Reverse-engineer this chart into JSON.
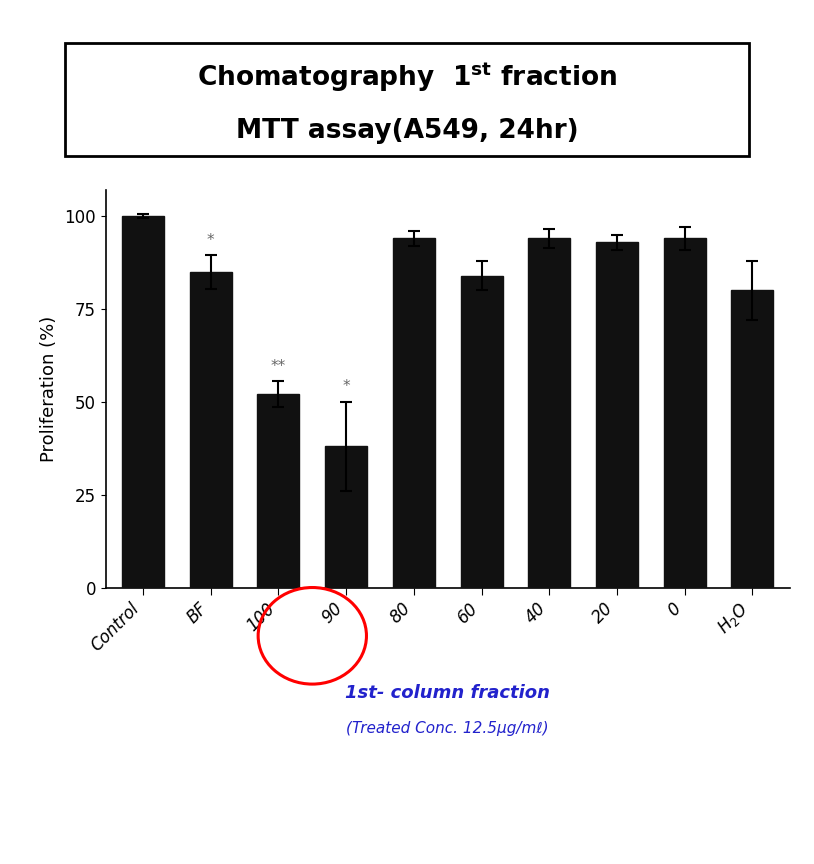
{
  "categories": [
    "Control",
    "BF",
    "100",
    "90",
    "80",
    "60",
    "40",
    "20",
    "0",
    "H₂O"
  ],
  "values": [
    100,
    85,
    52,
    38,
    94,
    84,
    94,
    93,
    94,
    80
  ],
  "errors": [
    0.5,
    4.5,
    3.5,
    12,
    2,
    4,
    2.5,
    2,
    3,
    8
  ],
  "bar_color": "#111111",
  "background_color": "#ffffff",
  "title_line1": "Chomatography  1$\\mathbf{^{st}}$ fraction",
  "title_line2": "MTT assay(A549, 24hr)",
  "ylabel": "Proliferation (%)",
  "xlabel_main": "1st- column fraction",
  "xlabel_sub": "(Treated Conc. 12.5μg/mℓ)",
  "ylim": [
    0,
    107
  ],
  "yticks": [
    0,
    25,
    50,
    75,
    100
  ],
  "significance": [
    "",
    "*",
    "**",
    "*",
    "",
    "",
    "",
    "",
    "",
    ""
  ],
  "circle_indices": [
    2,
    3
  ],
  "title_fontsize": 19,
  "axis_fontsize": 13,
  "tick_fontsize": 12,
  "sig_fontsize": 11
}
